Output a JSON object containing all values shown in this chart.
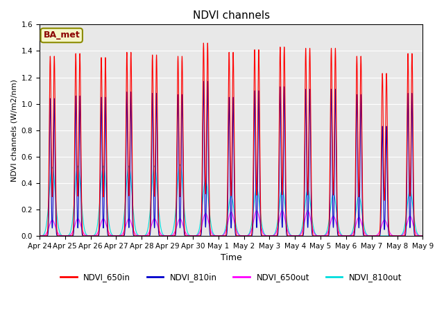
{
  "title": "NDVI channels",
  "xlabel": "Time",
  "ylabel": "NDVI channels (W/m2/nm)",
  "ylim": [
    0,
    1.6
  ],
  "yticks": [
    0.0,
    0.2,
    0.4,
    0.6,
    0.8,
    1.0,
    1.2,
    1.4,
    1.6
  ],
  "colors": {
    "NDVI_650in": "#ff0000",
    "NDVI_810in": "#0000cc",
    "NDVI_650out": "#ff00ff",
    "NDVI_810out": "#00dddd"
  },
  "ba_met_text": "BA_met",
  "fig_bg_color": "#ffffff",
  "plot_bg_color": "#e8e8e8",
  "num_days": 15,
  "peak_heights_650in": [
    1.36,
    1.38,
    1.35,
    1.39,
    1.37,
    1.36,
    1.46,
    1.39,
    1.41,
    1.43,
    1.42,
    1.42,
    1.36,
    1.23,
    1.38
  ],
  "peak_heights_810in": [
    1.04,
    1.06,
    1.05,
    1.09,
    1.08,
    1.07,
    1.17,
    1.05,
    1.1,
    1.13,
    1.11,
    1.11,
    1.07,
    0.83,
    1.08
  ],
  "peak_heights_650out": [
    0.12,
    0.13,
    0.13,
    0.13,
    0.13,
    0.13,
    0.17,
    0.18,
    0.19,
    0.19,
    0.19,
    0.15,
    0.14,
    0.12,
    0.15
  ],
  "peak_heights_810out": [
    0.52,
    0.53,
    0.53,
    0.53,
    0.53,
    0.54,
    0.42,
    0.3,
    0.36,
    0.35,
    0.35,
    0.32,
    0.3,
    0.0,
    0.34
  ],
  "xtick_labels": [
    "Apr 24",
    "Apr 25",
    "Apr 26",
    "Apr 27",
    "Apr 28",
    "Apr 29",
    "Apr 30",
    "May 1",
    "May 2",
    "May 3",
    "May 4",
    "May 5",
    "May 6",
    "May 7",
    "May 8",
    "May 9"
  ]
}
